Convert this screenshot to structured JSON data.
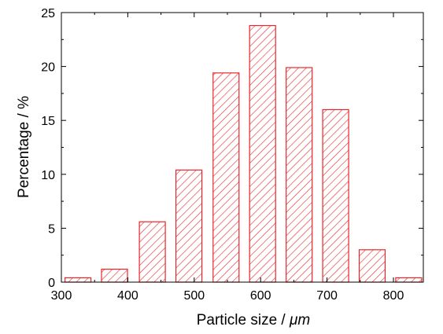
{
  "chart_data": {
    "type": "bar",
    "xlabel_main": "Particle size / ",
    "xlabel_unit": "μm",
    "ylabel": "Percentage / %",
    "xlim": [
      300,
      845
    ],
    "ylim": [
      0,
      25
    ],
    "xticks": [
      300,
      400,
      500,
      600,
      700,
      800
    ],
    "yticks": [
      0,
      5,
      10,
      15,
      20,
      25
    ],
    "bar_color": "#e8262a",
    "fill_pattern": "diagonal-hatch",
    "bars": [
      {
        "x": 325,
        "value": 0.4
      },
      {
        "x": 380,
        "value": 1.2
      },
      {
        "x": 437,
        "value": 5.6
      },
      {
        "x": 492,
        "value": 10.4
      },
      {
        "x": 548,
        "value": 19.4
      },
      {
        "x": 603,
        "value": 23.8
      },
      {
        "x": 658,
        "value": 19.9
      },
      {
        "x": 713,
        "value": 16.0
      },
      {
        "x": 768,
        "value": 3.0
      },
      {
        "x": 823,
        "value": 0.4
      }
    ]
  }
}
